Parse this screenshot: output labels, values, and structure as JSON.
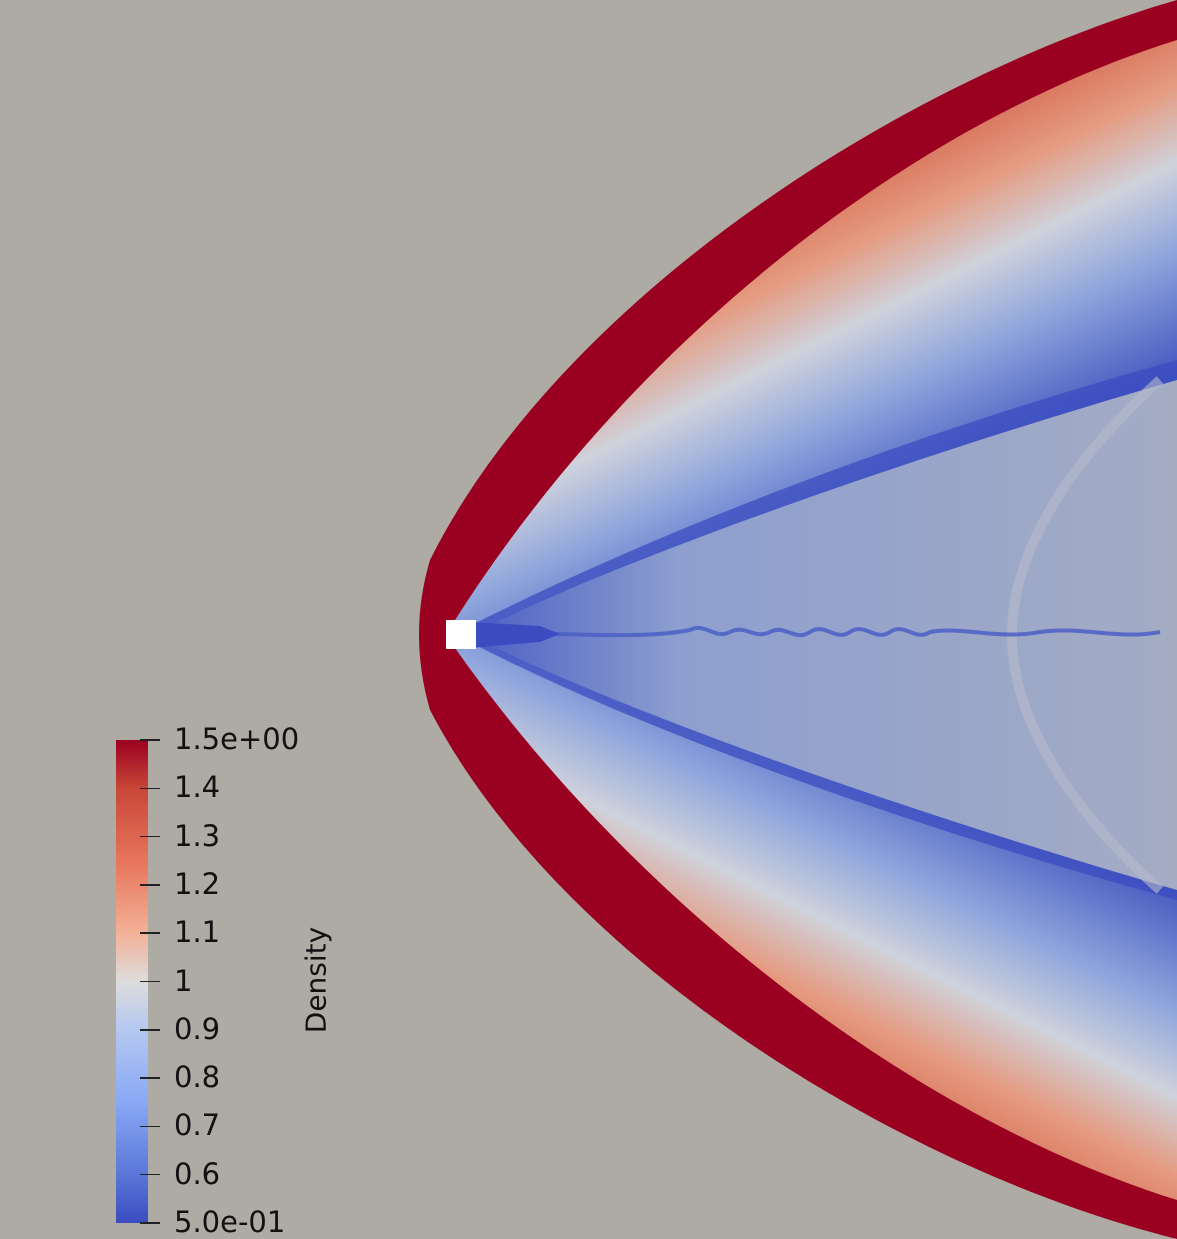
{
  "colors": {
    "background": "#aeaaa4",
    "high": "#9a0020",
    "low": "#3b4cc0",
    "mid": "#dddcdc",
    "obstacle": "#ffffff"
  },
  "colorbar": {
    "title": "Density",
    "range": [
      0.5,
      1.5
    ],
    "ticks": [
      {
        "value": 1.5,
        "label": "1.5e+00"
      },
      {
        "value": 1.4,
        "label": "1.4"
      },
      {
        "value": 1.3,
        "label": "1.3"
      },
      {
        "value": 1.2,
        "label": "1.2"
      },
      {
        "value": 1.1,
        "label": "1.1"
      },
      {
        "value": 1.0,
        "label": "1"
      },
      {
        "value": 0.9,
        "label": "0.9"
      },
      {
        "value": 0.8,
        "label": "0.8"
      },
      {
        "value": 0.7,
        "label": "0.7"
      },
      {
        "value": 0.6,
        "label": "0.6"
      },
      {
        "value": 0.5,
        "label": "5.0e-01"
      }
    ]
  }
}
